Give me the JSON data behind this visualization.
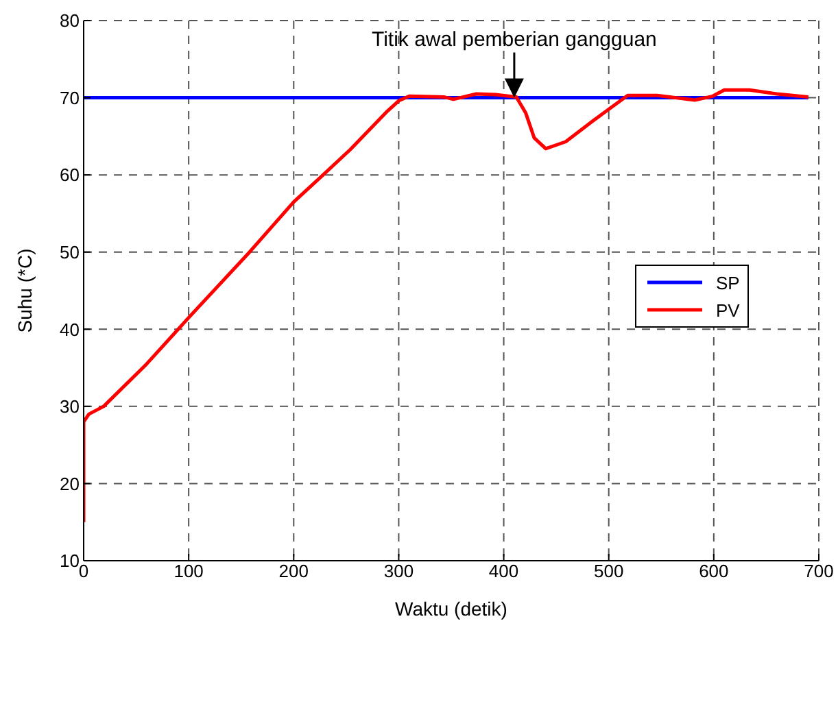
{
  "chart_data": {
    "type": "line",
    "xlabel": "Waktu (detik)",
    "ylabel": "Suhu (*C)",
    "xlim": [
      0,
      700
    ],
    "xticks": [
      0,
      100,
      200,
      300,
      400,
      500,
      600,
      700
    ],
    "ylim": [
      10,
      80
    ],
    "yticks": [
      10,
      20,
      30,
      40,
      50,
      60,
      70,
      80
    ],
    "grid": true,
    "legend": "right",
    "marker": "none",
    "line_style": "solid",
    "annotations": [
      {
        "text": "Titik awal pemberian gangguan",
        "x": 410,
        "y": 70
      }
    ],
    "series": [
      {
        "name": "SP",
        "color": "#0000ff",
        "x": [
          0,
          690
        ],
        "values": [
          70,
          70
        ]
      },
      {
        "name": "PV",
        "color": "#ff0000",
        "x": [
          0,
          0,
          5,
          19,
          60,
          100,
          158,
          200,
          228,
          254,
          288,
          300,
          310,
          343,
          352,
          374,
          392,
          412,
          421,
          429,
          440,
          459,
          485,
          501,
          518,
          546,
          582,
          599,
          610,
          634,
          660,
          690
        ],
        "values": [
          15,
          28,
          29,
          30,
          35.5,
          41.5,
          50,
          56.5,
          60,
          63.3,
          68.1,
          69.6,
          70.2,
          70.1,
          69.8,
          70.5,
          70.4,
          70.1,
          68,
          64.8,
          63.4,
          64.3,
          67,
          68.6,
          70.3,
          70.3,
          69.7,
          70.2,
          71,
          71,
          70.5,
          70.1
        ]
      }
    ]
  }
}
